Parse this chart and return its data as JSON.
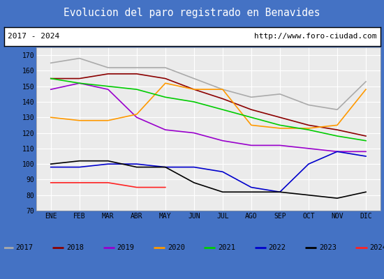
{
  "title": "Evolucion del paro registrado en Benavides",
  "title_bgcolor": "#4472c4",
  "title_color": "white",
  "subtitle_left": "2017 - 2024",
  "subtitle_right": "http://www.foro-ciudad.com",
  "xlabel_months": [
    "ENE",
    "FEB",
    "MAR",
    "ABR",
    "MAY",
    "JUN",
    "JUL",
    "AGO",
    "SEP",
    "OCT",
    "NOV",
    "DIC"
  ],
  "ylim": [
    70,
    175
  ],
  "yticks": [
    70,
    80,
    90,
    100,
    110,
    120,
    130,
    140,
    150,
    160,
    170
  ],
  "series": {
    "2017": {
      "color": "#aaaaaa",
      "values": [
        165,
        168,
        162,
        162,
        162,
        155,
        148,
        143,
        145,
        138,
        135,
        153
      ]
    },
    "2018": {
      "color": "#8b0000",
      "values": [
        155,
        155,
        158,
        158,
        155,
        148,
        142,
        135,
        130,
        125,
        122,
        118
      ]
    },
    "2019": {
      "color": "#9900cc",
      "values": [
        148,
        152,
        148,
        130,
        122,
        120,
        115,
        112,
        112,
        110,
        108,
        108
      ]
    },
    "2020": {
      "color": "#ff9900",
      "values": [
        130,
        128,
        128,
        132,
        152,
        148,
        148,
        125,
        123,
        123,
        125,
        148
      ]
    },
    "2021": {
      "color": "#00cc00",
      "values": [
        155,
        152,
        150,
        148,
        143,
        140,
        135,
        130,
        125,
        122,
        118,
        115
      ]
    },
    "2022": {
      "color": "#0000cc",
      "values": [
        98,
        98,
        100,
        100,
        98,
        98,
        95,
        85,
        82,
        100,
        108,
        105
      ]
    },
    "2023": {
      "color": "#000000",
      "values": [
        100,
        102,
        102,
        98,
        98,
        88,
        82,
        82,
        82,
        80,
        78,
        82
      ]
    },
    "2024": {
      "color": "#ff2222",
      "values": [
        88,
        88,
        88,
        85,
        85,
        null,
        null,
        null,
        null,
        null,
        null,
        null
      ]
    }
  }
}
